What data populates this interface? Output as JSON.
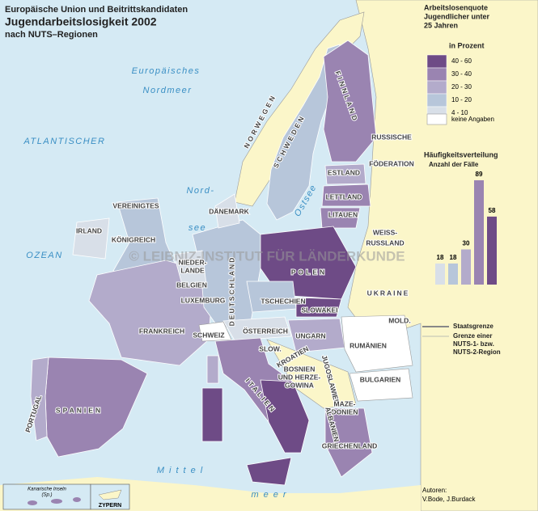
{
  "title": {
    "line1": "Europäische Union und Beitrittskandidaten",
    "line2": "Jugendarbeitslosigkeit 2002",
    "line3": "nach NUTS–Regionen"
  },
  "legend": {
    "heading": [
      "Arbeitslosenquote",
      "Jugendlicher unter",
      "25 Jahren"
    ],
    "unit": "in Prozent",
    "classes": [
      {
        "label": "40 - 60",
        "color": "#6e4b86"
      },
      {
        "label": "30 - 40",
        "color": "#9a84b1"
      },
      {
        "label": "20 - 30",
        "color": "#b3abcb"
      },
      {
        "label": "10 - 20",
        "color": "#b7c6da"
      },
      {
        "label": "4 - 10",
        "color": "#d8dfe8"
      }
    ],
    "no_data": "keine Angaben"
  },
  "histogram": {
    "title": "Häufigkeitsverteilung",
    "subtitle": "Anzahl der Fälle",
    "values": [
      18,
      18,
      30,
      89,
      58
    ]
  },
  "borders": {
    "state": "Staatsgrenze",
    "region": [
      "Grenze einer",
      "NUTS-1- bzw.",
      "NUTS-2-Region"
    ]
  },
  "authors": {
    "label": "Autoren:",
    "names": "V.Bode, J.Burdack"
  },
  "watermark": "© LEIBNIZ-INSTITUT FÜR LÄNDERKUNDE",
  "seas": [
    "Europäisches",
    "Nordmeer",
    "ATLANTISCHER",
    "OZEAN",
    "Nord-",
    "see",
    "Ostsee",
    "Mittel",
    "meer"
  ],
  "countries": [
    "NORWEGEN",
    "SCHWEDEN",
    "FINNLAND",
    "RUSSISCHE",
    "FÖDERATION",
    "ESTLAND",
    "LETTLAND",
    "LITAUEN",
    "WEISS-",
    "RUSSLAND",
    "DÄNEMARK",
    "VEREINIGTES",
    "KÖNIGREICH",
    "IRLAND",
    "NIEDER-",
    "LANDE",
    "BELGIEN",
    "LUXEMBURG",
    "DEUTSCHLAND",
    "POLEN",
    "TSCHECHIEN",
    "SLOWAKEI",
    "UKRAINE",
    "MOLD.",
    "FRANKREICH",
    "SCHWEIZ",
    "ÖSTERREICH",
    "UNGARN",
    "RUMÄNIEN",
    "SLOW.",
    "KROATIEN",
    "BOSNIEN",
    "UND HERZE-",
    "GOWINA",
    "JUGOSLAWIEN",
    "BULGARIEN",
    "MAZE-",
    "DONIEN",
    "ALBANIEN",
    "ITALIEN",
    "SPANIEN",
    "PORTUGAL",
    "GRIECHENLAND"
  ],
  "inset": {
    "canary": "Kanarische Inseln",
    "canary_note": "(Sp.)",
    "cyprus": "ZYPERN"
  }
}
